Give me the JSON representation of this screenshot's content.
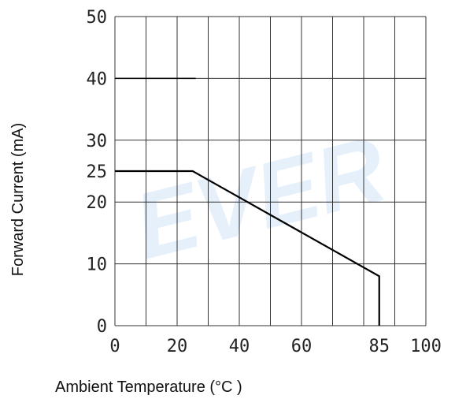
{
  "chart_data": {
    "type": "line",
    "title": "",
    "xlabel": "Ambient Temperature (°C )",
    "ylabel": "Forward Current (mA)",
    "xlim": [
      0,
      100
    ],
    "ylim": [
      0,
      50
    ],
    "x_tick_labels": [
      "0",
      "20",
      "40",
      "60",
      "85",
      "100"
    ],
    "x_tick_values": [
      0,
      20,
      40,
      60,
      85,
      100
    ],
    "y_tick_labels": [
      "0",
      "10",
      "20",
      "25",
      "30",
      "40",
      "50"
    ],
    "y_tick_values": [
      0,
      10,
      20,
      25,
      30,
      40,
      50
    ],
    "x_grid_values": [
      0,
      10,
      20,
      30,
      40,
      50,
      60,
      70,
      80,
      90,
      100
    ],
    "y_grid_values": [
      0,
      10,
      20,
      30,
      40,
      50
    ],
    "grid": true,
    "series": [
      {
        "x": [
          0,
          25,
          85,
          85
        ],
        "y": [
          25,
          25,
          8,
          0
        ]
      }
    ],
    "reference_segment": {
      "x": [
        0,
        26
      ],
      "y": [
        40,
        40
      ]
    },
    "watermark": "EVER"
  }
}
